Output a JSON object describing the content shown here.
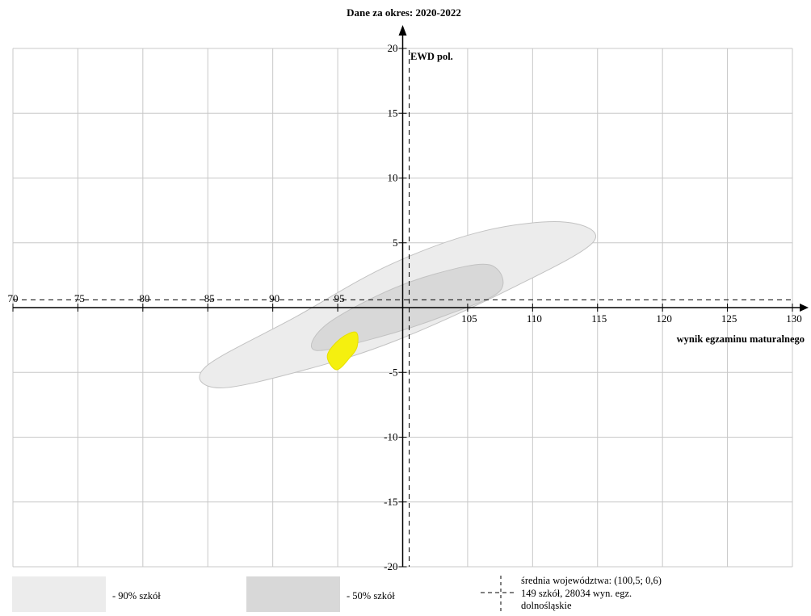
{
  "chart_data": {
    "type": "scatter",
    "title": "Dane za okres: 2020-2022",
    "xlabel": "wynik egzaminu maturalnego",
    "ylabel": "EWD pol.",
    "xlim": [
      70,
      130
    ],
    "ylim": [
      -20,
      20
    ],
    "x_ticks": [
      70,
      75,
      80,
      85,
      90,
      95,
      105,
      110,
      115,
      120,
      125,
      130
    ],
    "y_ticks": [
      20,
      15,
      10,
      5,
      -5,
      -10,
      -15,
      -20
    ],
    "grid": true,
    "reference_lines": {
      "x": 100.5,
      "y": 0.6
    },
    "regions": [
      {
        "name": "90% szkół",
        "color": "#ececec",
        "center": [
          100,
          0
        ],
        "polygon": [
          [
            85.9,
            -6.2
          ],
          [
            92.5,
            -4.8
          ],
          [
            99.6,
            -2.5
          ],
          [
            108.6,
            1.6
          ],
          [
            114.7,
            5.1
          ],
          [
            112.5,
            6.6
          ],
          [
            106.2,
            5.9
          ],
          [
            99,
            3.3
          ],
          [
            91.8,
            -0.7
          ],
          [
            84.8,
            -4.6
          ]
        ]
      },
      {
        "name": "50% szkół",
        "color": "#d8d8d8",
        "center": [
          100,
          0
        ],
        "polygon": [
          [
            93.3,
            -3.3
          ],
          [
            98.1,
            -2.3
          ],
          [
            103.3,
            -0.6
          ],
          [
            107.5,
            1.3
          ],
          [
            106.7,
            3.3
          ],
          [
            102.5,
            2.6
          ],
          [
            98,
            0.9
          ],
          [
            93.9,
            -1.5
          ]
        ]
      },
      {
        "name": "",
        "color": "#f5f00f",
        "center": [
          95.5,
          -3.2
        ],
        "polygon": [
          [
            94.9,
            -4.8
          ],
          [
            95.9,
            -3.9
          ],
          [
            96.5,
            -3
          ],
          [
            96.4,
            -1.9
          ],
          [
            95.2,
            -2.4
          ],
          [
            94.2,
            -3.7
          ]
        ]
      }
    ]
  },
  "legend": {
    "item_90": "- 90% szkół",
    "item_50": "- 50% szkół",
    "average_line1": "średnia województwa: (100,5; 0,6)",
    "average_line2": "149 szkół, 28034 wyn. egz.",
    "average_line3": "dolnośląskie"
  },
  "colors": {
    "region_90": "#ececec",
    "region_50": "#d8d8d8",
    "highlight": "#f5f00f",
    "grid": "#c8c8c8"
  }
}
